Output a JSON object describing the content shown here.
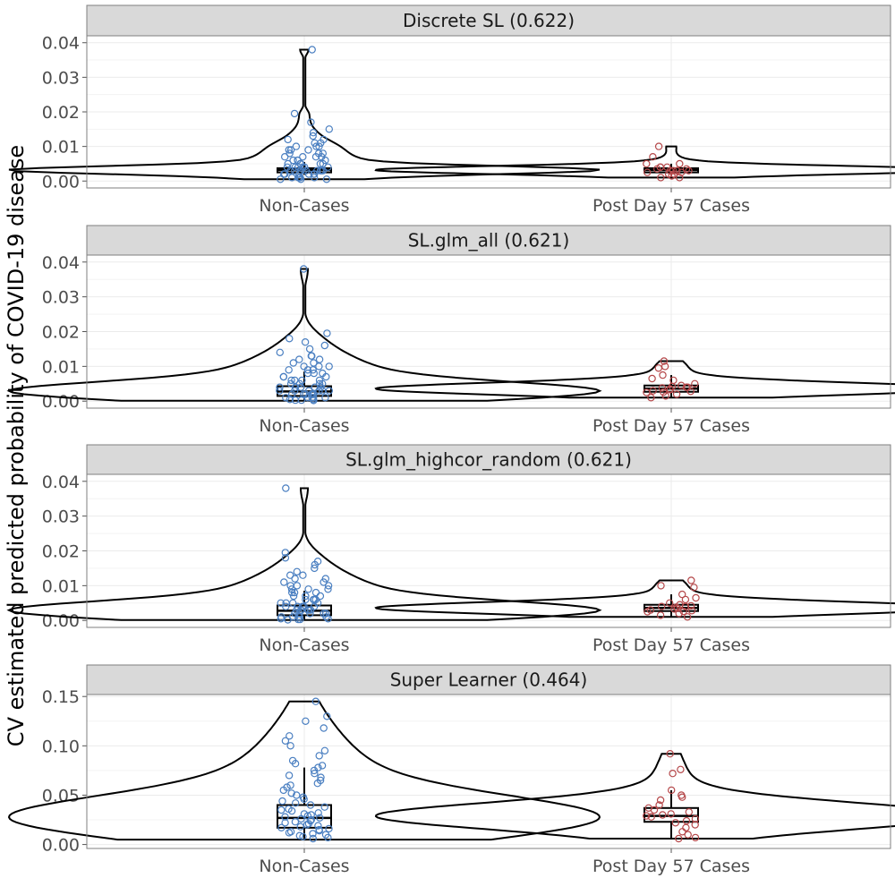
{
  "chart_data": {
    "type": "violin",
    "ylabel": "CV estimated predicted probability of COVID-19 disease",
    "categories": [
      "Non-Cases",
      "Post Day 57 Cases"
    ],
    "colors": {
      "non_cases": "#4a7fc1",
      "cases": "#b5484a",
      "strip": "#d9d9d9",
      "panel_border": "#7f7f7f",
      "grid": "#ebebeb"
    },
    "panels": [
      {
        "title": "Discrete SL (0.622)",
        "ylim": [
          -0.002,
          0.042
        ],
        "yticks": [
          "0.00",
          "0.01",
          "0.02",
          "0.03",
          "0.04"
        ],
        "ytick_values": [
          0,
          0.01,
          0.02,
          0.03,
          0.04
        ],
        "groups": [
          {
            "name": "Non-Cases",
            "box": {
              "q1": 0.0025,
              "median": 0.0032,
              "q3": 0.0037,
              "whisker_low": 0.0018,
              "whisker_high": 0.0055
            },
            "max": 0.038,
            "points": [
              0.038,
              0.0195,
              0.017,
              0.015,
              0.014,
              0.013,
              0.012,
              0.012,
              0.011,
              0.011,
              0.01,
              0.01,
              0.01,
              0.009,
              0.009,
              0.009,
              0.008,
              0.008,
              0.008,
              0.007,
              0.007,
              0.007,
              0.007,
              0.006,
              0.006,
              0.006,
              0.006,
              0.005,
              0.005,
              0.005,
              0.005,
              0.005,
              0.004,
              0.004,
              0.004,
              0.004,
              0.004,
              0.004,
              0.003,
              0.003,
              0.003,
              0.003,
              0.003,
              0.003,
              0.003,
              0.003,
              0.002,
              0.002,
              0.002,
              0.002,
              0.002,
              0.002,
              0.001,
              0.001,
              0.001,
              0.001,
              0.001,
              0.0005,
              0.0005,
              0.0005
            ]
          },
          {
            "name": "Post Day 57 Cases",
            "box": {
              "q1": 0.0025,
              "median": 0.0032,
              "q3": 0.0037,
              "whisker_low": 0.0018,
              "whisker_high": 0.005
            },
            "max": 0.01,
            "points": [
              0.01,
              0.007,
              0.005,
              0.005,
              0.004,
              0.004,
              0.004,
              0.0035,
              0.0035,
              0.003,
              0.003,
              0.003,
              0.003,
              0.0025,
              0.0025,
              0.002,
              0.002,
              0.0015,
              0.001,
              0.001
            ]
          }
        ]
      },
      {
        "title": "SL.glm_all (0.621)",
        "ylim": [
          -0.002,
          0.042
        ],
        "yticks": [
          "0.00",
          "0.01",
          "0.02",
          "0.03",
          "0.04"
        ],
        "ytick_values": [
          0,
          0.01,
          0.02,
          0.03,
          0.04
        ],
        "groups": [
          {
            "name": "Non-Cases",
            "box": {
              "q1": 0.0015,
              "median": 0.0028,
              "q3": 0.0043,
              "whisker_low": 0.0001,
              "whisker_high": 0.0085
            },
            "max": 0.038,
            "points": [
              0.038,
              0.0195,
              0.018,
              0.017,
              0.016,
              0.015,
              0.014,
              0.013,
              0.013,
              0.012,
              0.012,
              0.011,
              0.011,
              0.01,
              0.01,
              0.01,
              0.009,
              0.009,
              0.009,
              0.008,
              0.008,
              0.008,
              0.007,
              0.007,
              0.007,
              0.006,
              0.006,
              0.006,
              0.006,
              0.005,
              0.005,
              0.005,
              0.005,
              0.004,
              0.004,
              0.004,
              0.004,
              0.004,
              0.003,
              0.003,
              0.003,
              0.003,
              0.003,
              0.003,
              0.002,
              0.002,
              0.002,
              0.002,
              0.002,
              0.002,
              0.001,
              0.001,
              0.001,
              0.001,
              0.001,
              0.0005,
              0.0005,
              0.0003,
              0.0003,
              0.0002
            ]
          },
          {
            "name": "Post Day 57 Cases",
            "box": {
              "q1": 0.0027,
              "median": 0.0036,
              "q3": 0.0045,
              "whisker_low": 0.001,
              "whisker_high": 0.0075
            },
            "max": 0.0115,
            "points": [
              0.0115,
              0.01,
              0.0095,
              0.0075,
              0.0065,
              0.006,
              0.005,
              0.0045,
              0.0042,
              0.004,
              0.004,
              0.0038,
              0.0035,
              0.0033,
              0.003,
              0.0028,
              0.0026,
              0.0025,
              0.002,
              0.0015,
              0.001
            ]
          }
        ]
      },
      {
        "title": "SL.glm_highcor_random (0.621)",
        "ylim": [
          -0.002,
          0.042
        ],
        "yticks": [
          "0.00",
          "0.01",
          "0.02",
          "0.03",
          "0.04"
        ],
        "ytick_values": [
          0,
          0.01,
          0.02,
          0.03,
          0.04
        ],
        "groups": [
          {
            "name": "Non-Cases",
            "box": {
              "q1": 0.0015,
              "median": 0.0028,
              "q3": 0.0043,
              "whisker_low": 0.0001,
              "whisker_high": 0.0085
            },
            "max": 0.038,
            "points": [
              0.038,
              0.0195,
              0.018,
              0.017,
              0.016,
              0.015,
              0.014,
              0.013,
              0.013,
              0.012,
              0.012,
              0.011,
              0.011,
              0.01,
              0.01,
              0.01,
              0.009,
              0.009,
              0.009,
              0.008,
              0.008,
              0.008,
              0.007,
              0.007,
              0.007,
              0.006,
              0.006,
              0.006,
              0.006,
              0.005,
              0.005,
              0.005,
              0.005,
              0.004,
              0.004,
              0.004,
              0.004,
              0.004,
              0.003,
              0.003,
              0.003,
              0.003,
              0.003,
              0.003,
              0.002,
              0.002,
              0.002,
              0.002,
              0.002,
              0.002,
              0.001,
              0.001,
              0.001,
              0.001,
              0.001,
              0.0005,
              0.0005,
              0.0003,
              0.0003,
              0.0002
            ]
          },
          {
            "name": "Post Day 57 Cases",
            "box": {
              "q1": 0.0027,
              "median": 0.0036,
              "q3": 0.0045,
              "whisker_low": 0.001,
              "whisker_high": 0.0075
            },
            "max": 0.0115,
            "points": [
              0.0115,
              0.01,
              0.0095,
              0.0075,
              0.0065,
              0.006,
              0.005,
              0.0045,
              0.0042,
              0.004,
              0.004,
              0.0038,
              0.0035,
              0.0033,
              0.003,
              0.0028,
              0.0026,
              0.0025,
              0.002,
              0.0015,
              0.001
            ]
          }
        ]
      },
      {
        "title": "Super Learner (0.464)",
        "ylim": [
          -0.004,
          0.152
        ],
        "yticks": [
          "0.00",
          "0.05",
          "0.10",
          "0.15"
        ],
        "ytick_values": [
          0,
          0.05,
          0.1,
          0.15
        ],
        "groups": [
          {
            "name": "Non-Cases",
            "box": {
              "q1": 0.017,
              "median": 0.027,
              "q3": 0.04,
              "whisker_low": 0.005,
              "whisker_high": 0.078
            },
            "max": 0.145,
            "points": [
              0.145,
              0.13,
              0.125,
              0.118,
              0.11,
              0.105,
              0.1,
              0.095,
              0.09,
              0.085,
              0.082,
              0.08,
              0.078,
              0.075,
              0.072,
              0.07,
              0.068,
              0.065,
              0.062,
              0.06,
              0.058,
              0.055,
              0.052,
              0.05,
              0.048,
              0.046,
              0.044,
              0.042,
              0.04,
              0.038,
              0.036,
              0.035,
              0.034,
              0.032,
              0.031,
              0.03,
              0.029,
              0.028,
              0.027,
              0.026,
              0.025,
              0.024,
              0.023,
              0.022,
              0.021,
              0.02,
              0.019,
              0.018,
              0.017,
              0.016,
              0.015,
              0.014,
              0.013,
              0.012,
              0.011,
              0.01,
              0.009,
              0.008,
              0.007,
              0.006
            ]
          },
          {
            "name": "Post Day 57 Cases",
            "box": {
              "q1": 0.023,
              "median": 0.029,
              "q3": 0.037,
              "whisker_low": 0.006,
              "whisker_high": 0.055
            },
            "max": 0.092,
            "points": [
              0.092,
              0.076,
              0.072,
              0.055,
              0.05,
              0.048,
              0.045,
              0.04,
              0.037,
              0.035,
              0.033,
              0.031,
              0.03,
              0.029,
              0.028,
              0.026,
              0.024,
              0.022,
              0.02,
              0.017,
              0.013,
              0.01,
              0.007,
              0.006
            ]
          }
        ]
      }
    ]
  }
}
